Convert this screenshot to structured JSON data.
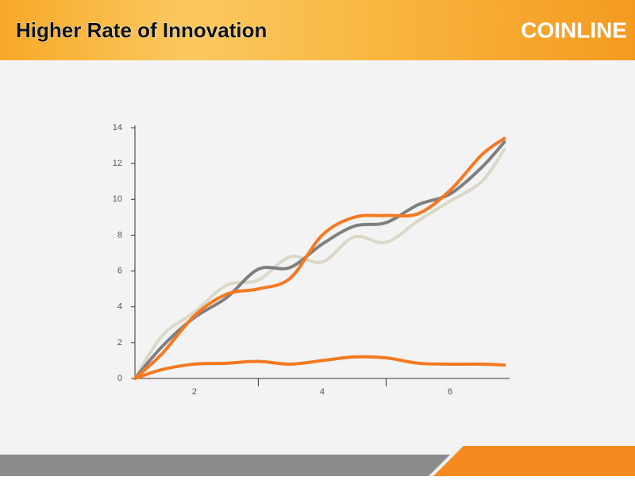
{
  "header": {
    "title": "Higher Rate of Innovation",
    "brand": "COINLINE"
  },
  "chart_data": {
    "type": "line",
    "x": [
      1.07,
      1.5,
      2,
      2.5,
      3,
      3.5,
      4,
      4.5,
      5,
      5.5,
      6,
      6.5,
      6.85
    ],
    "xlim": [
      1.07,
      6.92
    ],
    "xticks": [
      2,
      4,
      6
    ],
    "xtick_marks": [
      3,
      5
    ],
    "ylim": [
      0,
      14
    ],
    "yticks": [
      0,
      2,
      4,
      6,
      8,
      10,
      12,
      14
    ],
    "series": [
      {
        "color": "#dcd8c8",
        "values": [
          0,
          2.4,
          3.7,
          5.2,
          5.5,
          6.8,
          6.5,
          7.9,
          7.6,
          8.8,
          9.9,
          11,
          12.8
        ]
      },
      {
        "color": "#7f7f7f",
        "values": [
          0,
          1.8,
          3.4,
          4.5,
          6.1,
          6.2,
          7.5,
          8.5,
          8.7,
          9.7,
          10.3,
          11.8,
          13.2
        ]
      },
      {
        "color": "#f47920",
        "values": [
          0,
          1.4,
          3.5,
          4.7,
          5.0,
          5.6,
          8.0,
          9.0,
          9.1,
          9.2,
          10.5,
          12.5,
          13.4
        ]
      },
      {
        "color": "#f47920",
        "values": [
          0,
          0.5,
          0.8,
          0.85,
          0.95,
          0.8,
          1.0,
          1.2,
          1.15,
          0.85,
          0.8,
          0.8,
          0.75
        ]
      }
    ]
  }
}
